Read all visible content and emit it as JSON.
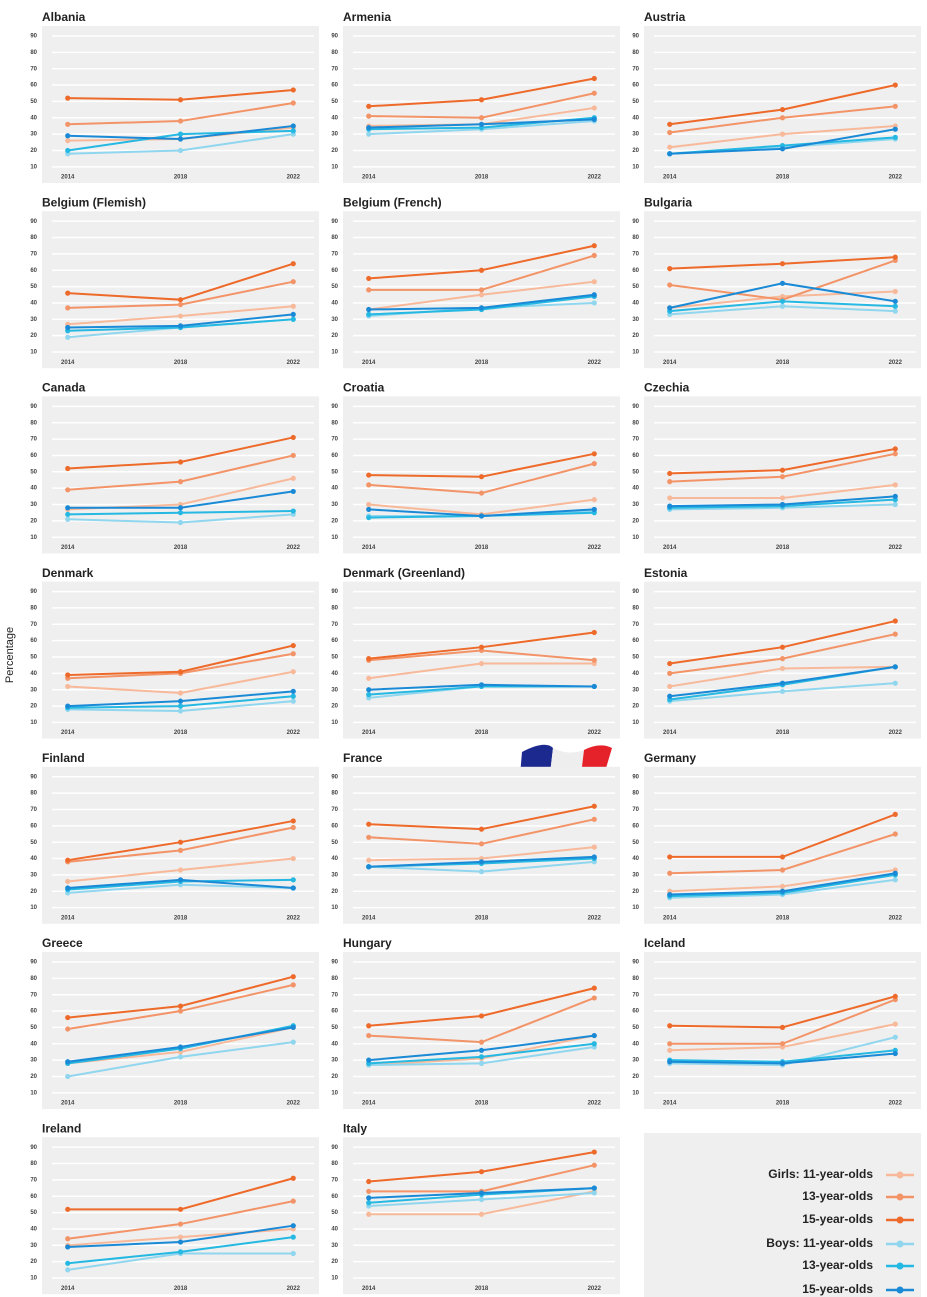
{
  "shared": {
    "x": [
      2014,
      2018,
      2022
    ],
    "xlim": [
      2013.3,
      2022.7
    ],
    "ylim": [
      5,
      95
    ],
    "yticks": [
      10,
      20,
      30,
      40,
      50,
      60,
      70,
      80,
      90
    ],
    "y_label": "Percentage",
    "legend": [
      {
        "name": "Girls: 11-year-olds",
        "color": "#f7b99a"
      },
      {
        "name": "13-year-olds",
        "color": "#f39468"
      },
      {
        "name": "15-year-olds",
        "color": "#ee6a2a"
      },
      {
        "name": "Boys: 11-year-olds",
        "color": "#8fd6ee"
      },
      {
        "name": "13-year-olds",
        "color": "#25b8e2"
      },
      {
        "name": "15-year-olds",
        "color": "#1a8ad6"
      }
    ]
  },
  "chart_data": [
    {
      "type": "line",
      "title": "Albania",
      "series": [
        {
          "values": [
            26,
            27,
            34
          ]
        },
        {
          "values": [
            36,
            38,
            49
          ]
        },
        {
          "values": [
            52,
            51,
            57
          ]
        },
        {
          "values": [
            18,
            20,
            30
          ]
        },
        {
          "values": [
            20,
            30,
            32
          ]
        },
        {
          "values": [
            29,
            27,
            35
          ]
        }
      ]
    },
    {
      "type": "line",
      "title": "Armenia",
      "series": [
        {
          "values": [
            35,
            36,
            46
          ]
        },
        {
          "values": [
            41,
            40,
            55
          ]
        },
        {
          "values": [
            47,
            51,
            64
          ]
        },
        {
          "values": [
            30,
            33,
            38
          ]
        },
        {
          "values": [
            33,
            34,
            40
          ]
        },
        {
          "values": [
            34,
            36,
            39
          ]
        }
      ]
    },
    {
      "type": "line",
      "title": "Austria",
      "series": [
        {
          "values": [
            22,
            30,
            35
          ]
        },
        {
          "values": [
            31,
            40,
            47
          ]
        },
        {
          "values": [
            36,
            45,
            60
          ]
        },
        {
          "values": [
            18,
            22,
            27
          ]
        },
        {
          "values": [
            18,
            23,
            28
          ]
        },
        {
          "values": [
            18,
            21,
            33
          ]
        }
      ]
    },
    {
      "type": "line",
      "title": "Belgium (Flemish)",
      "series": [
        {
          "values": [
            27,
            32,
            38
          ]
        },
        {
          "values": [
            37,
            39,
            53
          ]
        },
        {
          "values": [
            46,
            42,
            64
          ]
        },
        {
          "values": [
            19,
            25,
            30
          ]
        },
        {
          "values": [
            23,
            25,
            30
          ]
        },
        {
          "values": [
            25,
            26,
            33
          ]
        }
      ]
    },
    {
      "type": "line",
      "title": "Belgium (French)",
      "series": [
        {
          "values": [
            36,
            45,
            53
          ]
        },
        {
          "values": [
            48,
            48,
            69
          ]
        },
        {
          "values": [
            55,
            60,
            75
          ]
        },
        {
          "values": [
            32,
            37,
            40
          ]
        },
        {
          "values": [
            33,
            36,
            44
          ]
        },
        {
          "values": [
            36,
            37,
            45
          ]
        }
      ]
    },
    {
      "type": "line",
      "title": "Bulgaria",
      "series": [
        {
          "values": [
            37,
            44,
            47
          ]
        },
        {
          "values": [
            51,
            42,
            66
          ]
        },
        {
          "values": [
            61,
            64,
            68
          ]
        },
        {
          "values": [
            33,
            38,
            35
          ]
        },
        {
          "values": [
            35,
            41,
            38
          ]
        },
        {
          "values": [
            37,
            52,
            41
          ]
        }
      ]
    },
    {
      "type": "line",
      "title": "Canada",
      "series": [
        {
          "values": [
            27,
            30,
            46
          ]
        },
        {
          "values": [
            39,
            44,
            60
          ]
        },
        {
          "values": [
            52,
            56,
            71
          ]
        },
        {
          "values": [
            21,
            19,
            24
          ]
        },
        {
          "values": [
            24,
            25,
            26
          ]
        },
        {
          "values": [
            28,
            28,
            38
          ]
        }
      ]
    },
    {
      "type": "line",
      "title": "Croatia",
      "series": [
        {
          "values": [
            30,
            24,
            33
          ]
        },
        {
          "values": [
            42,
            37,
            55
          ]
        },
        {
          "values": [
            48,
            47,
            61
          ]
        },
        {
          "values": [
            23,
            23,
            26
          ]
        },
        {
          "values": [
            22,
            23,
            25
          ]
        },
        {
          "values": [
            27,
            23,
            27
          ]
        }
      ]
    },
    {
      "type": "line",
      "title": "Czechia",
      "series": [
        {
          "values": [
            34,
            34,
            42
          ]
        },
        {
          "values": [
            44,
            47,
            61
          ]
        },
        {
          "values": [
            49,
            51,
            64
          ]
        },
        {
          "values": [
            27,
            28,
            30
          ]
        },
        {
          "values": [
            28,
            29,
            33
          ]
        },
        {
          "values": [
            29,
            30,
            35
          ]
        }
      ]
    },
    {
      "type": "line",
      "title": "Denmark",
      "series": [
        {
          "values": [
            32,
            28,
            41
          ]
        },
        {
          "values": [
            37,
            40,
            52
          ]
        },
        {
          "values": [
            39,
            41,
            57
          ]
        },
        {
          "values": [
            18,
            17,
            23
          ]
        },
        {
          "values": [
            19,
            20,
            26
          ]
        },
        {
          "values": [
            20,
            23,
            29
          ]
        }
      ]
    },
    {
      "type": "line",
      "title": "Denmark (Greenland)",
      "series": [
        {
          "values": [
            37,
            46,
            46
          ]
        },
        {
          "values": [
            48,
            54,
            48
          ]
        },
        {
          "values": [
            49,
            56,
            65
          ]
        },
        {
          "values": [
            25,
            32,
            32
          ]
        },
        {
          "values": [
            27,
            32,
            32
          ]
        },
        {
          "values": [
            30,
            33,
            32
          ]
        }
      ]
    },
    {
      "type": "line",
      "title": "Estonia",
      "series": [
        {
          "values": [
            32,
            43,
            44
          ]
        },
        {
          "values": [
            40,
            49,
            64
          ]
        },
        {
          "values": [
            46,
            56,
            72
          ]
        },
        {
          "values": [
            23,
            29,
            34
          ]
        },
        {
          "values": [
            24,
            33,
            44
          ]
        },
        {
          "values": [
            26,
            34,
            44
          ]
        }
      ]
    },
    {
      "type": "line",
      "title": "Finland",
      "series": [
        {
          "values": [
            26,
            33,
            40
          ]
        },
        {
          "values": [
            38,
            45,
            59
          ]
        },
        {
          "values": [
            39,
            50,
            63
          ]
        },
        {
          "values": [
            19,
            24,
            22
          ]
        },
        {
          "values": [
            21,
            26,
            27
          ]
        },
        {
          "values": [
            22,
            27,
            22
          ]
        }
      ]
    },
    {
      "type": "line",
      "title": "France",
      "series": [
        {
          "values": [
            39,
            40,
            47
          ]
        },
        {
          "values": [
            53,
            49,
            64
          ]
        },
        {
          "values": [
            61,
            58,
            72
          ]
        },
        {
          "values": [
            35,
            32,
            38
          ]
        },
        {
          "values": [
            35,
            37,
            40
          ]
        },
        {
          "values": [
            35,
            38,
            41
          ]
        }
      ]
    },
    {
      "type": "line",
      "title": "Germany",
      "series": [
        {
          "values": [
            20,
            23,
            33
          ]
        },
        {
          "values": [
            31,
            33,
            55
          ]
        },
        {
          "values": [
            41,
            41,
            67
          ]
        },
        {
          "values": [
            16,
            18,
            27
          ]
        },
        {
          "values": [
            17,
            19,
            30
          ]
        },
        {
          "values": [
            18,
            20,
            31
          ]
        }
      ]
    },
    {
      "type": "line",
      "title": "Greece",
      "series": [
        {
          "values": [
            28,
            35,
            50
          ]
        },
        {
          "values": [
            49,
            60,
            76
          ]
        },
        {
          "values": [
            56,
            63,
            81
          ]
        },
        {
          "values": [
            20,
            32,
            41
          ]
        },
        {
          "values": [
            28,
            37,
            51
          ]
        },
        {
          "values": [
            29,
            38,
            50
          ]
        }
      ]
    },
    {
      "type": "line",
      "title": "Hungary",
      "series": [
        {
          "values": [
            27,
            31,
            45
          ]
        },
        {
          "values": [
            45,
            41,
            68
          ]
        },
        {
          "values": [
            51,
            57,
            74
          ]
        },
        {
          "values": [
            27,
            28,
            38
          ]
        },
        {
          "values": [
            28,
            32,
            40
          ]
        },
        {
          "values": [
            30,
            36,
            45
          ]
        }
      ]
    },
    {
      "type": "line",
      "title": "Iceland",
      "series": [
        {
          "values": [
            36,
            38,
            52
          ]
        },
        {
          "values": [
            40,
            40,
            67
          ]
        },
        {
          "values": [
            51,
            50,
            69
          ]
        },
        {
          "values": [
            28,
            27,
            44
          ]
        },
        {
          "values": [
            30,
            29,
            36
          ]
        },
        {
          "values": [
            29,
            28,
            34
          ]
        }
      ]
    },
    {
      "type": "line",
      "title": "Ireland",
      "series": [
        {
          "values": [
            30,
            35,
            40
          ]
        },
        {
          "values": [
            34,
            43,
            57
          ]
        },
        {
          "values": [
            52,
            52,
            71
          ]
        },
        {
          "values": [
            15,
            25,
            25
          ]
        },
        {
          "values": [
            19,
            26,
            35
          ]
        },
        {
          "values": [
            29,
            32,
            42
          ]
        }
      ]
    },
    {
      "type": "line",
      "title": "Italy",
      "series": [
        {
          "values": [
            49,
            49,
            63
          ]
        },
        {
          "values": [
            63,
            63,
            79
          ]
        },
        {
          "values": [
            69,
            75,
            87
          ]
        },
        {
          "values": [
            54,
            58,
            62
          ]
        },
        {
          "values": [
            56,
            61,
            65
          ]
        },
        {
          "values": [
            59,
            62,
            65
          ]
        }
      ]
    }
  ]
}
